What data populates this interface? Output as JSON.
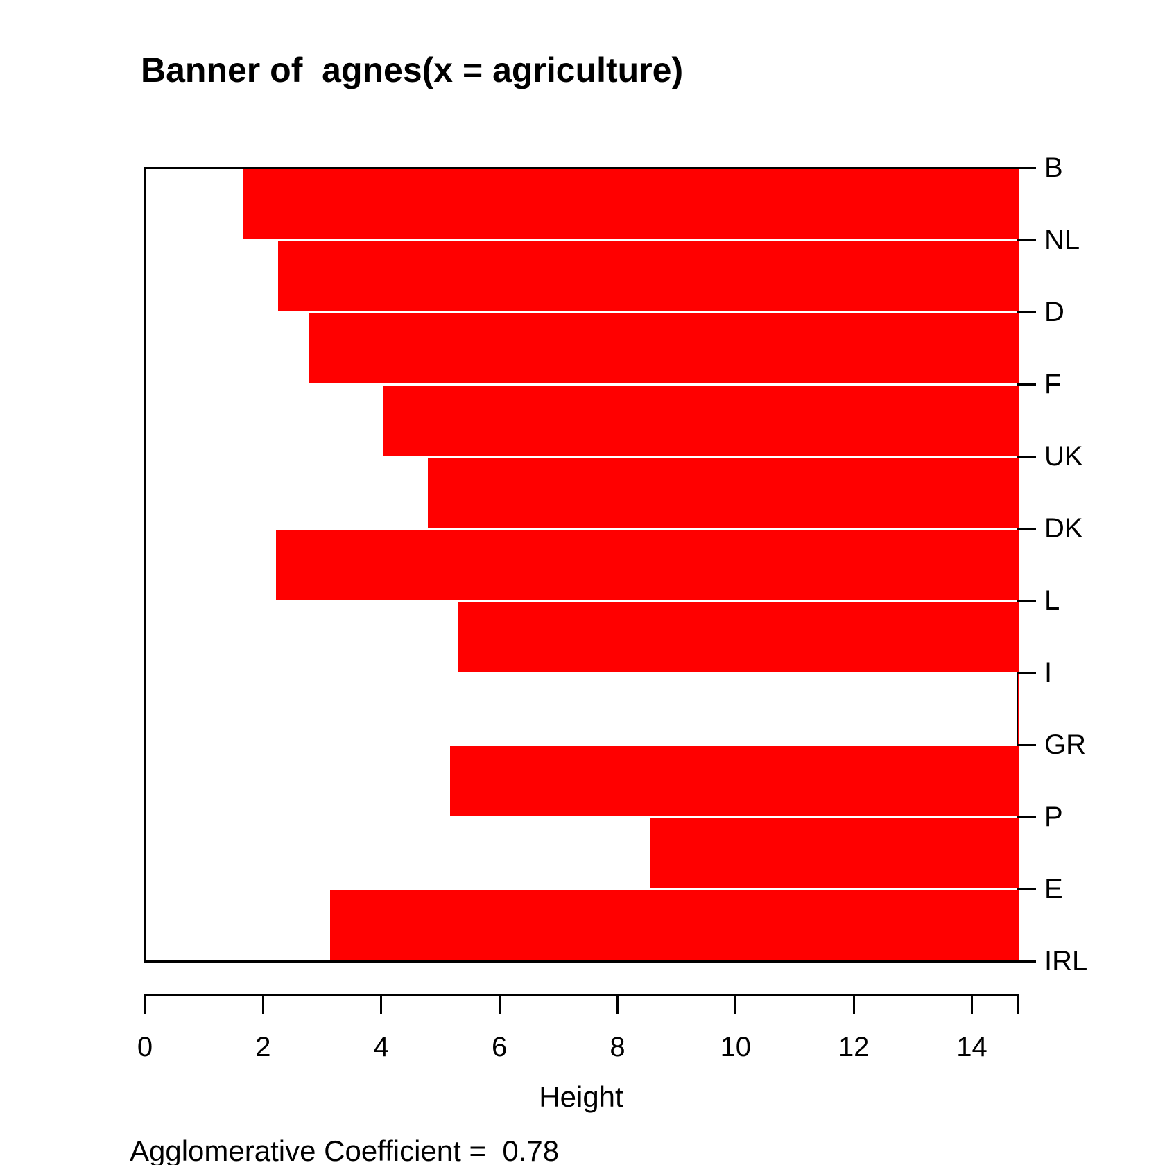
{
  "title": "Banner of  agnes(x = agriculture)",
  "subtitle": "Agglomerative Coefficient =  0.78",
  "x_axis": {
    "label": "Height",
    "tick_values": [
      0,
      2,
      4,
      6,
      8,
      10,
      12,
      14
    ],
    "tick_labels": [
      "0",
      "2",
      "4",
      "6",
      "8",
      "10",
      "12",
      "14"
    ],
    "min": 0,
    "max": 14.78
  },
  "colors": {
    "bar_fill": "#FF0000",
    "line": "#000000",
    "background": "#FFFFFF"
  },
  "agglomerative_coefficient": 0.78,
  "chart_data": {
    "type": "bar",
    "variant": "agnes-banner",
    "title": "Banner of  agnes(x = agriculture)",
    "xlabel": "Height",
    "xlim": [
      0,
      14.78
    ],
    "grid": false,
    "legend": false,
    "labels": [
      "B",
      "NL",
      "D",
      "F",
      "UK",
      "DK",
      "L",
      "I",
      "GR",
      "P",
      "E",
      "IRL"
    ],
    "bars_between_adjacent_labels": [
      {
        "pair": "B-NL",
        "merge_height": 1.65
      },
      {
        "pair": "NL-D",
        "merge_height": 2.25
      },
      {
        "pair": "D-F",
        "merge_height": 2.77
      },
      {
        "pair": "F-UK",
        "merge_height": 4.03
      },
      {
        "pair": "UK-DK",
        "merge_height": 4.79
      },
      {
        "pair": "DK-L",
        "merge_height": 2.22
      },
      {
        "pair": "L-I",
        "merge_height": 5.29
      },
      {
        "pair": "I-GR",
        "merge_height": 14.78
      },
      {
        "pair": "GR-P",
        "merge_height": 5.16
      },
      {
        "pair": "P-E",
        "merge_height": 8.55
      },
      {
        "pair": "E-IRL",
        "merge_height": 3.14
      }
    ],
    "bars_extend_from_height_to_xmax": true,
    "note": "Row between I and GR is the root merge (height = xmax), so its bar has zero width (white row)."
  }
}
